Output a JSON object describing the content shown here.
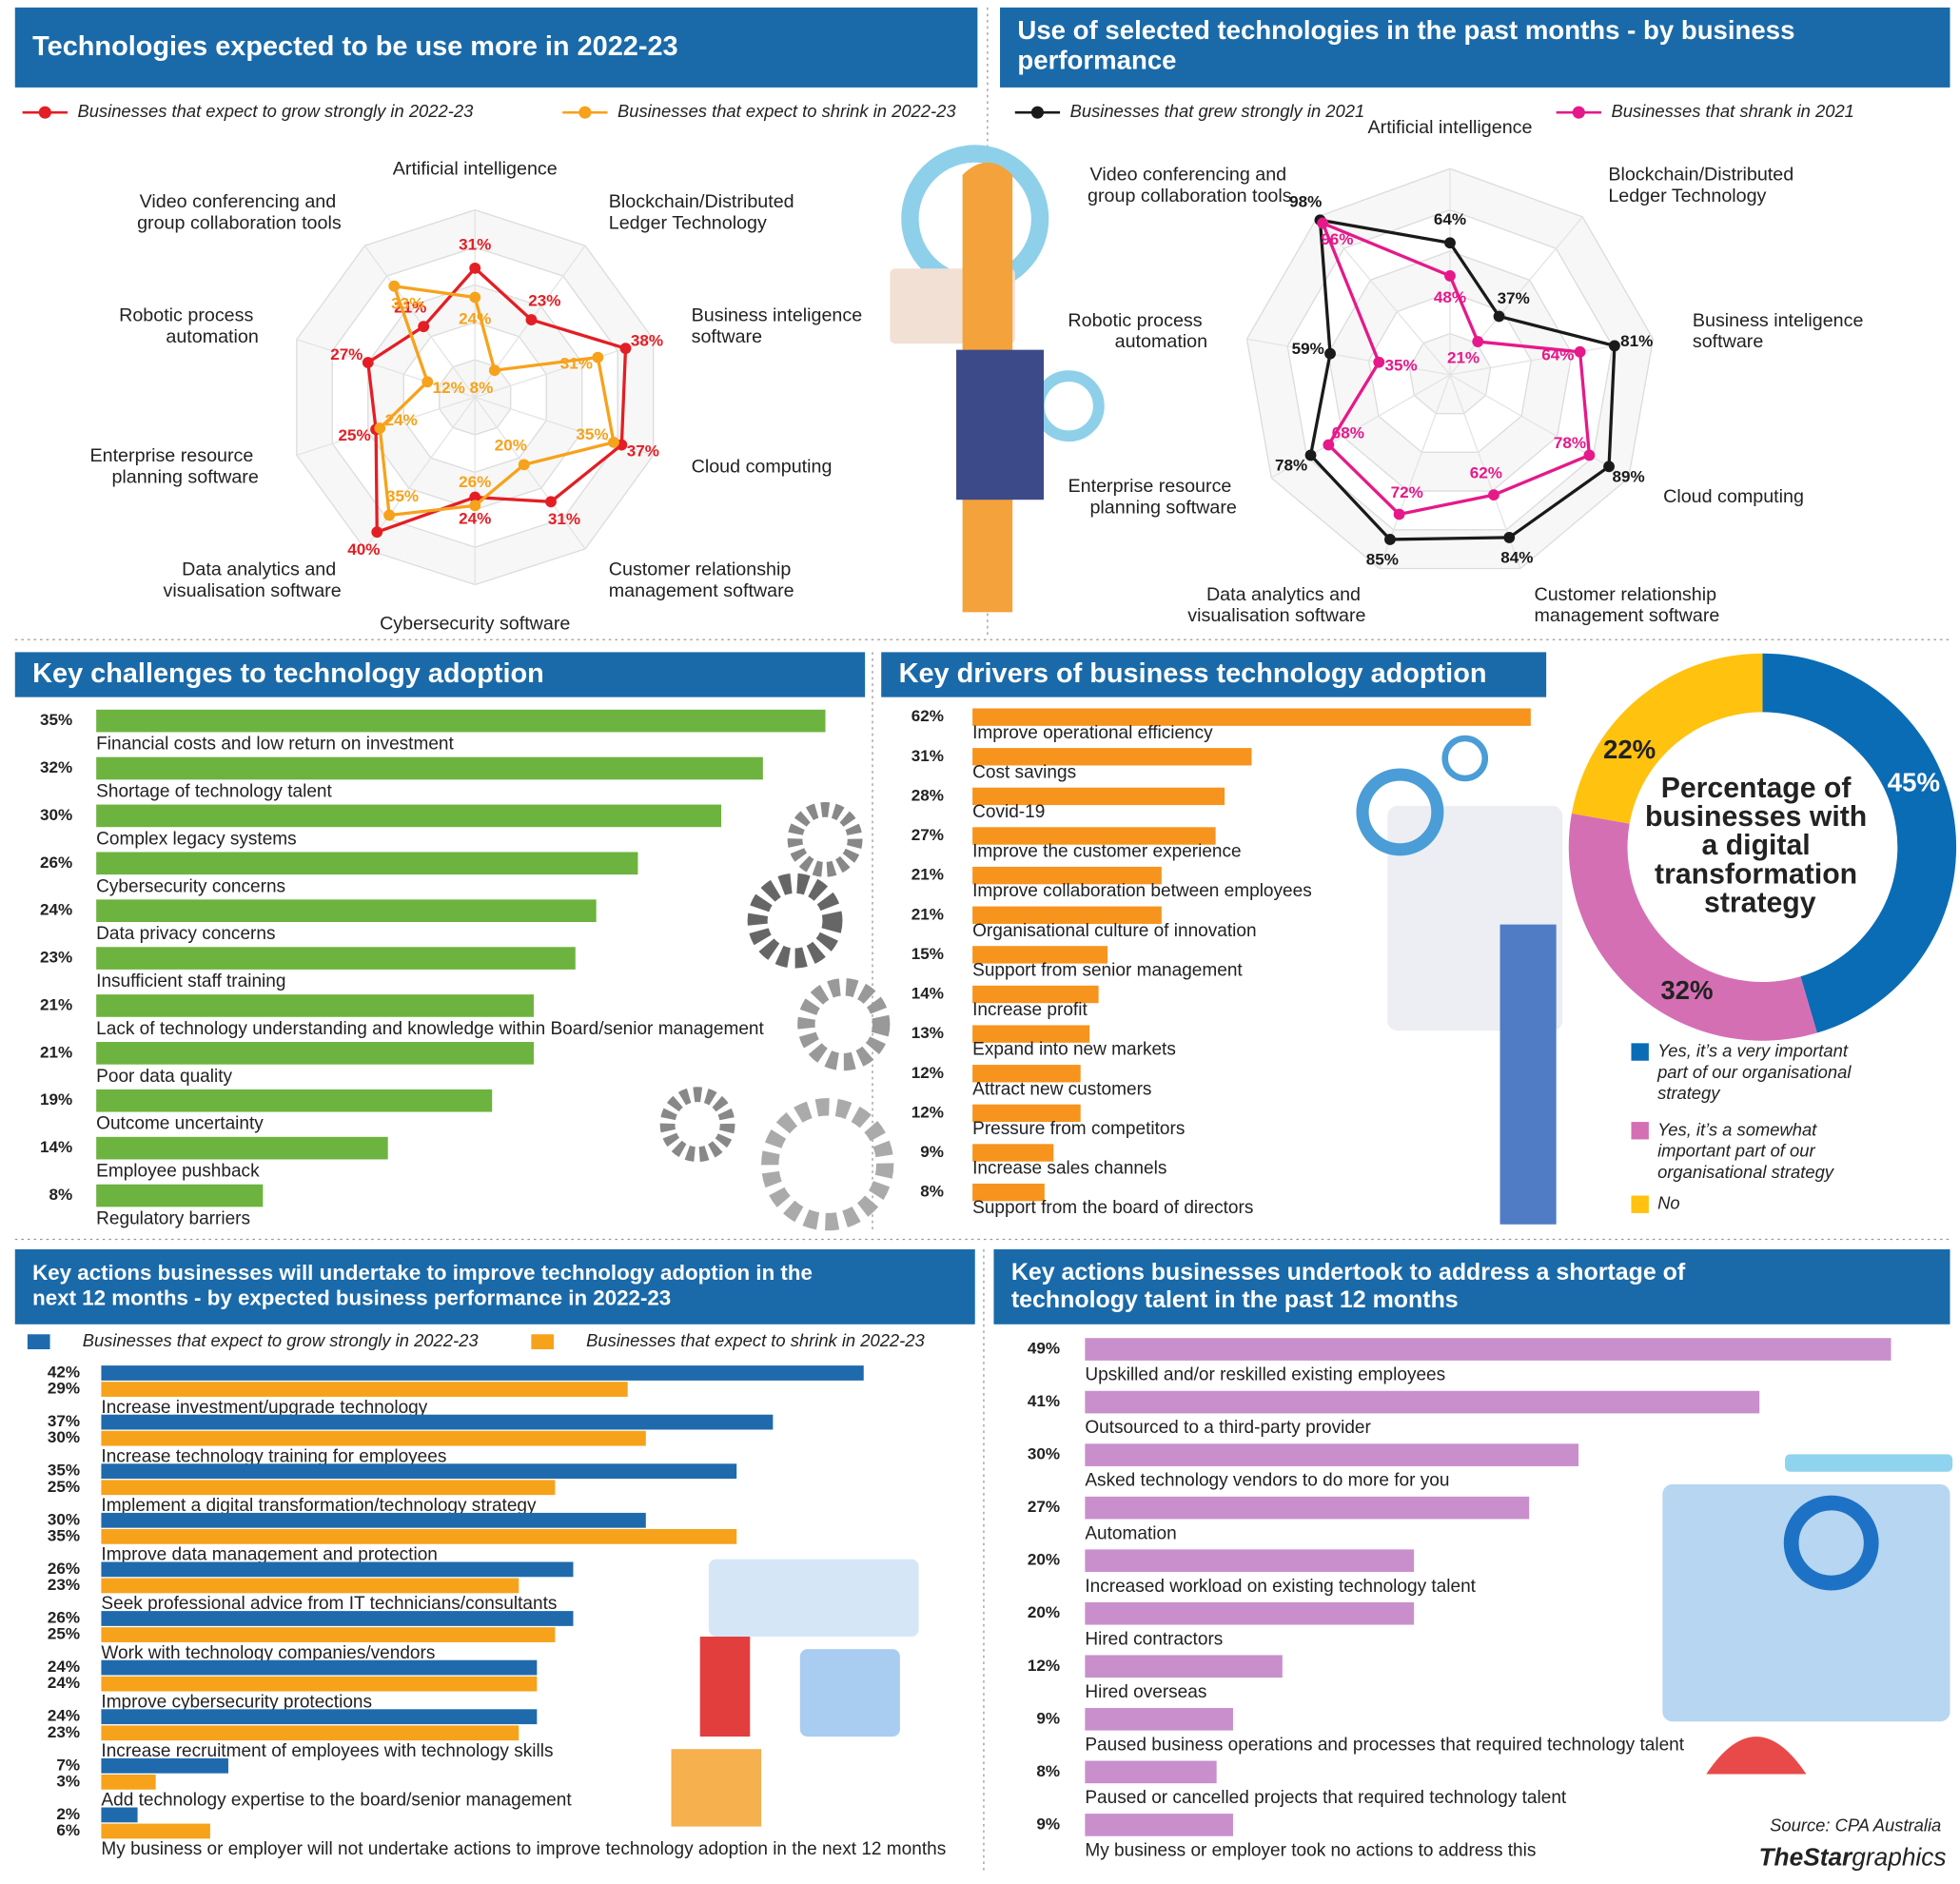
{
  "chart_data": [
    {
      "type": "radar",
      "title": "Technologies expected to be use more in 2022-23",
      "categories": [
        "Artificial intelligence",
        "Blockchain/Distributed Ledger Technology",
        "Business inteligence software",
        "Cloud computing",
        "Customer relationship management software",
        "Cybersecurity software",
        "Data analytics and visualisation software",
        "Enterprise resource planning software",
        "Robotic process automation",
        "Video conferencing and group collaboration tools"
      ],
      "series": [
        {
          "name": "Businesses that expect to grow strongly in 2022-23",
          "color": "#e31e24",
          "values": [
            31,
            23,
            38,
            37,
            31,
            24,
            40,
            25,
            27,
            21
          ],
          "value_labels": [
            "31%",
            "23%",
            "38%",
            "37%",
            "31%",
            "24%",
            "40%",
            "25%",
            "27%",
            "21%"
          ]
        },
        {
          "name": "Businesses that expect to shrink in 2022-23",
          "color": "#f7a21b",
          "values": [
            24,
            8,
            31,
            35,
            20,
            26,
            35,
            24,
            12,
            33
          ],
          "value_labels": [
            "24%",
            "8%",
            "31%",
            "35%",
            "20%",
            "26%",
            "35%",
            "24%",
            "12%",
            "33%"
          ]
        }
      ],
      "rlim": [
        0,
        45
      ]
    },
    {
      "type": "radar",
      "title": "Use of selected technologies in the past months - by business performance",
      "categories": [
        "Artificial intelligence",
        "Blockchain/Distributed Ledger Technology",
        "Business inteligence software",
        "Cloud computing",
        "Customer relationship management software",
        "Data analytics and visualisation software",
        "Enterprise resource planning software",
        "Robotic process automation",
        "Video conferencing and group collaboration tools"
      ],
      "series": [
        {
          "name": "Businesses that grew strongly in 2021",
          "color": "#1a1a1a",
          "values": [
            64,
            37,
            81,
            89,
            84,
            85,
            78,
            59,
            98
          ],
          "value_labels": [
            "64%",
            "37%",
            "81%",
            "89%",
            "84%",
            "85%",
            "78%",
            "59%",
            "98%"
          ]
        },
        {
          "name": "Businesses that shrank in 2021",
          "color": "#e5198a",
          "values": [
            48,
            21,
            64,
            78,
            62,
            72,
            68,
            35,
            96
          ],
          "value_labels": [
            "48%",
            "21%",
            "64%",
            "78%",
            "62%",
            "72%",
            "68%",
            "35%",
            "96%"
          ]
        }
      ],
      "rlim": [
        0,
        100
      ]
    },
    {
      "type": "bar",
      "title": "Key challenges to technology adoption",
      "color": "#6db33f",
      "categories": [
        "Financial costs and low return on investment",
        "Shortage of technology talent",
        "Complex legacy systems",
        "Cybersecurity concerns",
        "Data privacy concerns",
        "Insufficient staff training",
        "Lack of technology understanding and knowledge within Board/senior management",
        "Poor data quality",
        "Outcome uncertainty",
        "Employee pushback",
        "Regulatory barriers"
      ],
      "values": [
        35,
        32,
        30,
        26,
        24,
        23,
        21,
        21,
        19,
        14,
        8
      ],
      "value_labels": [
        "35%",
        "32%",
        "30%",
        "26%",
        "24%",
        "23%",
        "21%",
        "21%",
        "19%",
        "14%",
        "8%"
      ],
      "xlim": [
        0,
        36
      ]
    },
    {
      "type": "bar",
      "title": "Key drivers of business technology adoption",
      "color": "#f7941d",
      "categories": [
        "Improve operational efficiency",
        "Cost savings",
        "Covid-19",
        "Improve the customer experience",
        "Improve collaboration between employees",
        "Organisational culture of innovation",
        "Support from senior management",
        "Increase profit",
        "Expand into new markets",
        "Attract new customers",
        "Pressure from competitors",
        "Increase sales channels",
        "Support from the board of directors"
      ],
      "values": [
        62,
        31,
        28,
        27,
        21,
        21,
        15,
        14,
        13,
        12,
        12,
        9,
        8
      ],
      "value_labels": [
        "62%",
        "31%",
        "28%",
        "27%",
        "21%",
        "21%",
        "15%",
        "14%",
        "13%",
        "12%",
        "12%",
        "9%",
        "8%"
      ],
      "xlim": [
        0,
        64
      ]
    },
    {
      "type": "donut",
      "title": "Percentage of businesses with a digital transformation strategy",
      "categories": [
        "Yes, it’s a very important part of our organisational strategy",
        "Yes, it’s a somewhat important part of our organisational strategy",
        "No"
      ],
      "values": [
        45,
        32,
        22
      ],
      "value_labels": [
        "45%",
        "32%",
        "22%"
      ],
      "colors": [
        "#0a6cb5",
        "#d56fb4",
        "#ffc20e"
      ]
    },
    {
      "type": "bar",
      "title": "Key actions businesses will undertake to improve technology adoption in the next 12 months - by expected business performance in 2022-23",
      "categories": [
        "Increase investment/upgrade technology",
        "Increase technology training for employees",
        "Implement a digital transformation/technology strategy",
        "Improve data management and protection",
        "Seek professional advice from IT technicians/consultants",
        "Work with technology companies/vendors",
        "Improve cybersecurity protections",
        "Increase recruitment of employees with technology skills",
        "Add technology expertise to the board/senior management",
        "My business or employer will not undertake actions to improve technology adoption in the next 12 months"
      ],
      "series": [
        {
          "name": "Businesses that expect to grow strongly in 2022-23",
          "color": "#1f6aad",
          "values": [
            42,
            37,
            35,
            30,
            26,
            26,
            24,
            24,
            7,
            2
          ],
          "value_labels": [
            "42%",
            "37%",
            "35%",
            "30%",
            "26%",
            "26%",
            "24%",
            "24%",
            "7%",
            "2%"
          ]
        },
        {
          "name": "Businesses that expect to shrink in 2022-23",
          "color": "#f7a21b",
          "values": [
            29,
            30,
            25,
            35,
            23,
            25,
            24,
            23,
            3,
            6
          ],
          "value_labels": [
            "29%",
            "30%",
            "25%",
            "35%",
            "23%",
            "25%",
            "24%",
            "23%",
            "3%",
            "6%"
          ]
        }
      ],
      "xlim": [
        0,
        44
      ]
    },
    {
      "type": "bar",
      "title": "Key actions businesses undertook to address a shortage of technology talent in the past 12 months",
      "color": "#c98fcc",
      "categories": [
        "Upskilled and/or reskilled existing employees",
        "Outsourced to a third-party provider",
        "Asked technology vendors to do more for you",
        "Automation",
        "Increased workload on existing technology talent",
        "Hired contractors",
        "Hired overseas",
        "Paused business operations and processes that required technology talent",
        "Paused or cancelled projects that required technology talent",
        "My business or employer took no actions to address this"
      ],
      "values": [
        49,
        41,
        30,
        27,
        20,
        20,
        12,
        9,
        8,
        9
      ],
      "value_labels": [
        "49%",
        "41%",
        "30%",
        "27%",
        "20%",
        "20%",
        "12%",
        "9%",
        "8%",
        "9%"
      ],
      "xlim": [
        0,
        50
      ]
    }
  ],
  "source": "Source: CPA Australia",
  "credit_brand": "TheStar",
  "credit_suffix": "graphics"
}
